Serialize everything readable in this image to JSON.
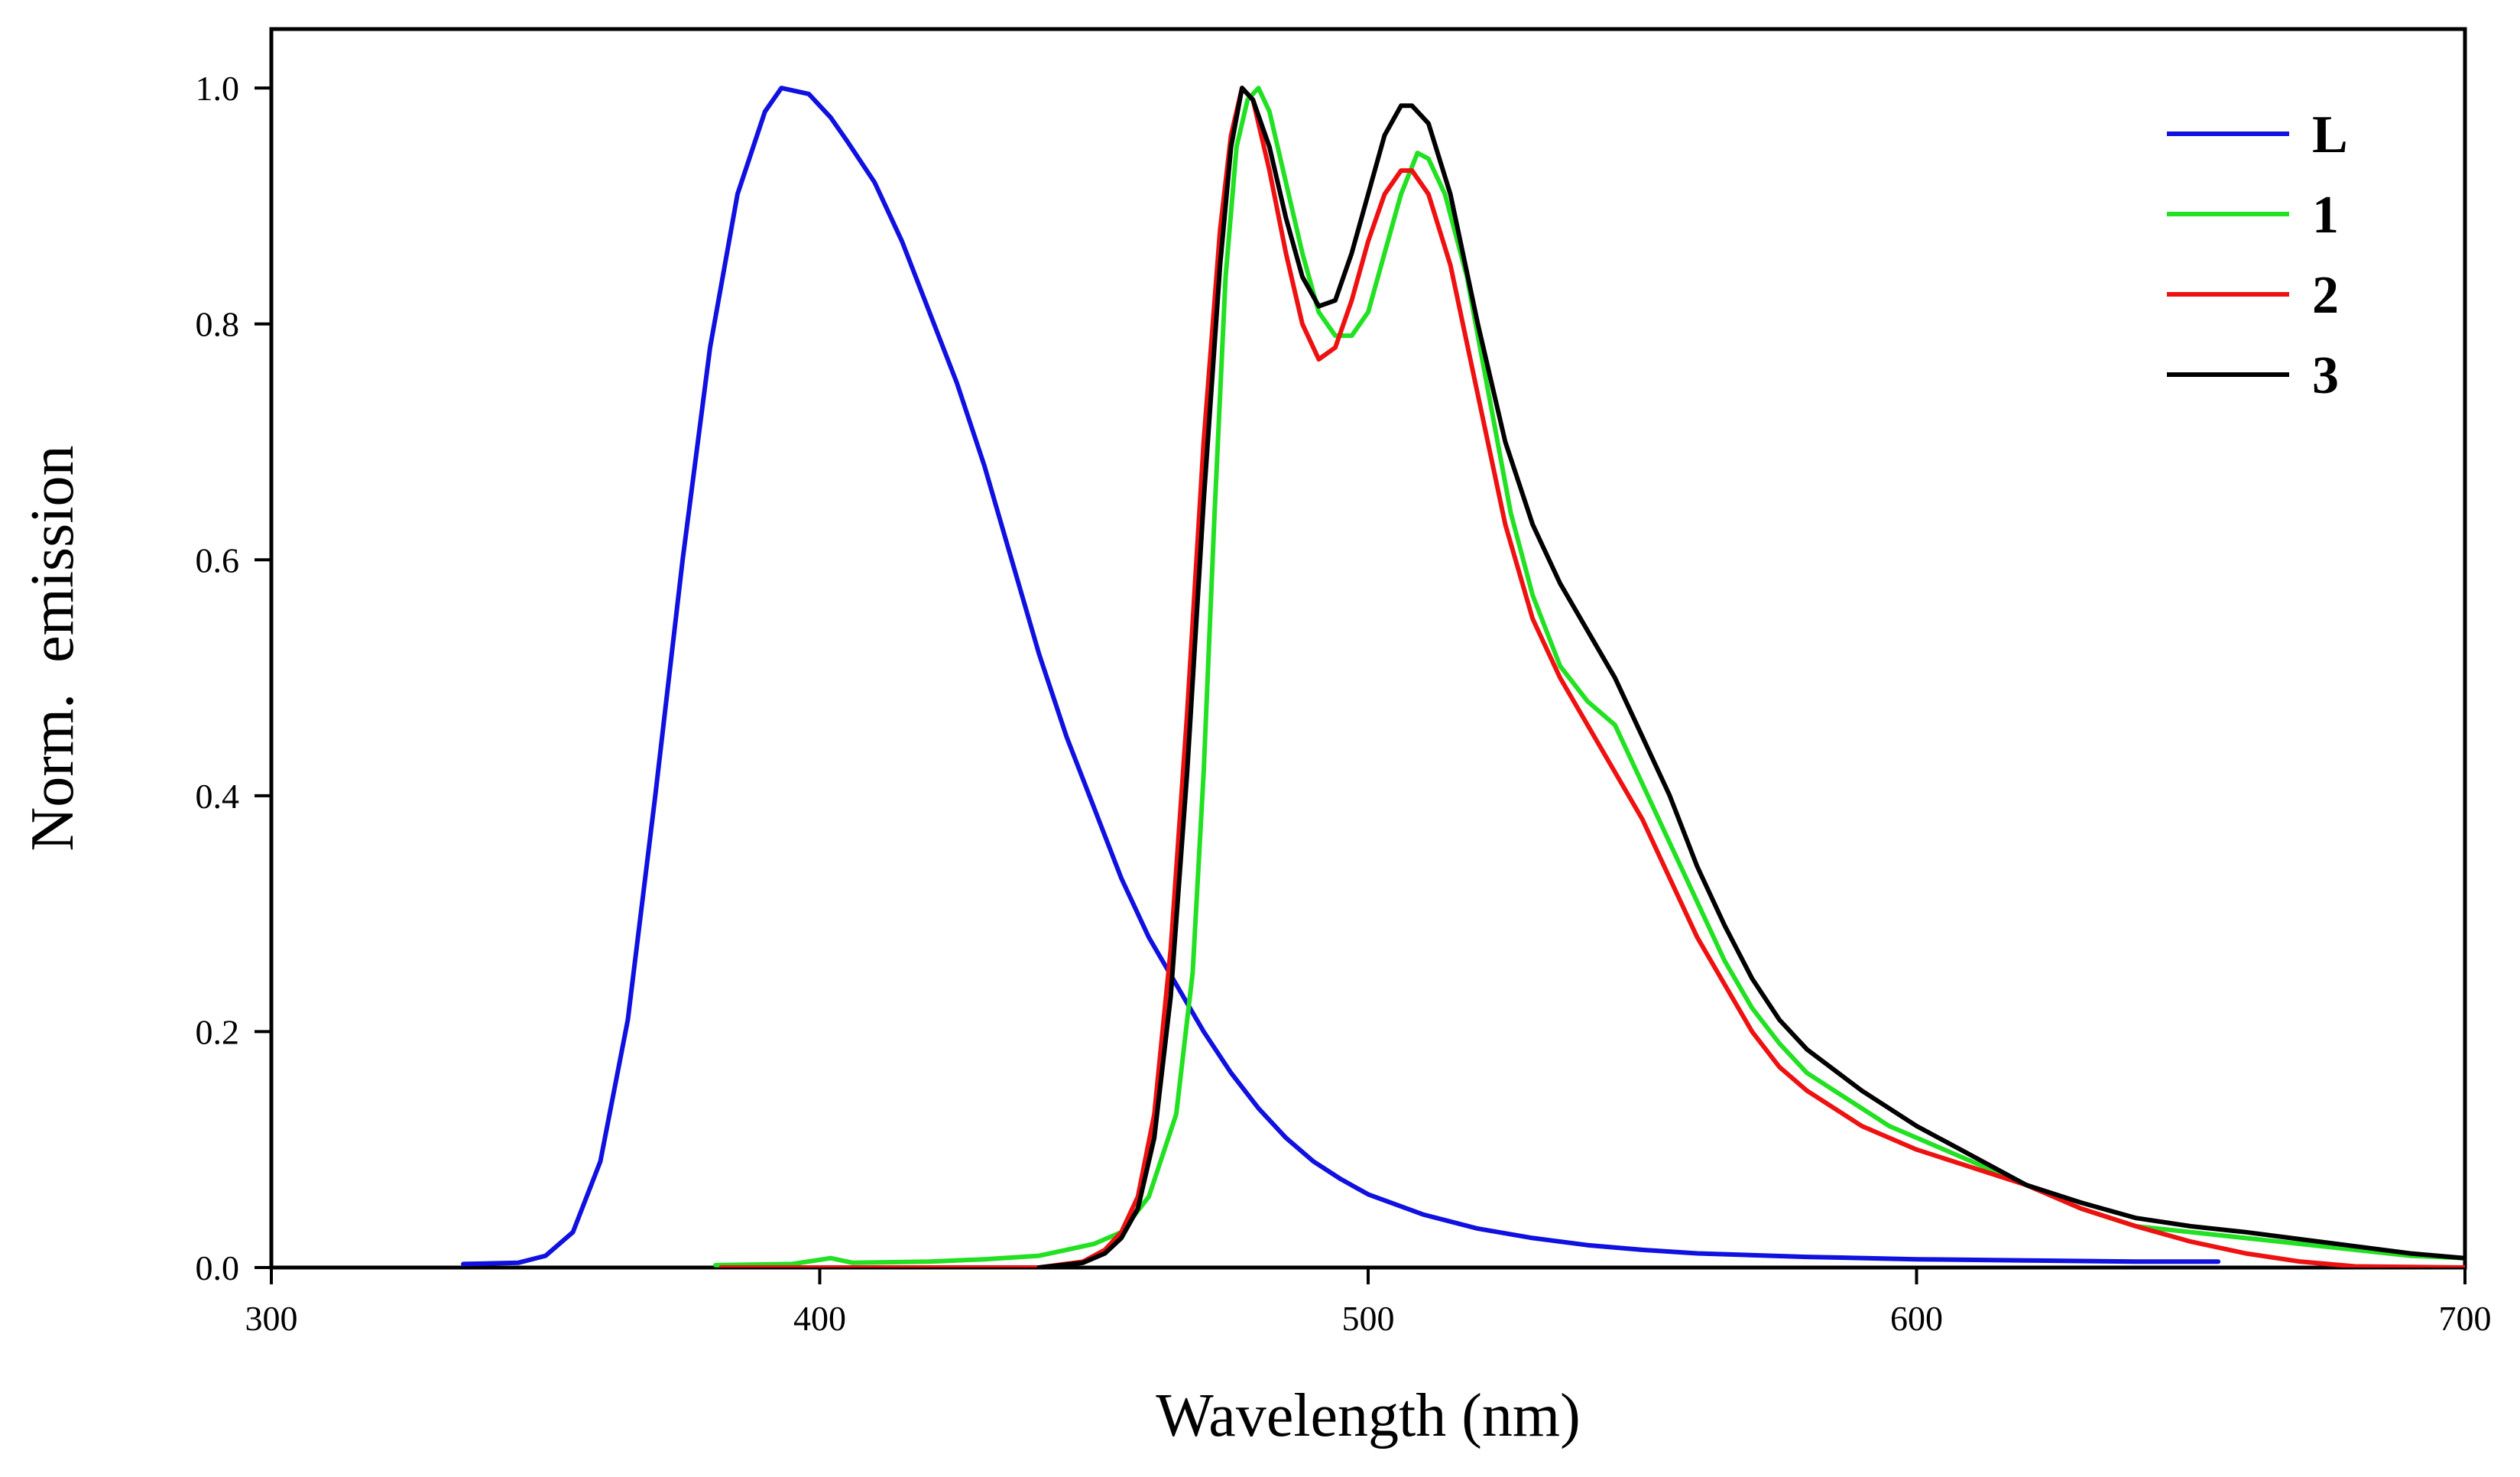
{
  "chart_data": {
    "type": "line",
    "title": "",
    "xlabel": "Wavelength (nm)",
    "ylabel": "Norm.  emission",
    "xlim": [
      300,
      700
    ],
    "ylim": [
      0,
      1.05
    ],
    "x_ticks": [
      300,
      400,
      500,
      600,
      700
    ],
    "x_tick_labels": [
      "300",
      "400",
      "500",
      "600",
      "700"
    ],
    "y_ticks": [
      0.0,
      0.2,
      0.4,
      0.6,
      0.8,
      1.0
    ],
    "y_tick_labels": [
      "0.0",
      "0.2",
      "0.4",
      "0.6",
      "0.8",
      "1.0"
    ],
    "grid": false,
    "legend_position": "top-right",
    "series": [
      {
        "name": "L",
        "color": "#1010e0",
        "points": [
          [
            335,
            0.003
          ],
          [
            345,
            0.004
          ],
          [
            350,
            0.01
          ],
          [
            355,
            0.03
          ],
          [
            360,
            0.09
          ],
          [
            365,
            0.21
          ],
          [
            370,
            0.4
          ],
          [
            375,
            0.6
          ],
          [
            380,
            0.78
          ],
          [
            385,
            0.91
          ],
          [
            390,
            0.98
          ],
          [
            393,
            1.0
          ],
          [
            398,
            0.995
          ],
          [
            402,
            0.975
          ],
          [
            405,
            0.955
          ],
          [
            410,
            0.92
          ],
          [
            415,
            0.87
          ],
          [
            420,
            0.81
          ],
          [
            425,
            0.75
          ],
          [
            430,
            0.68
          ],
          [
            435,
            0.6
          ],
          [
            440,
            0.52
          ],
          [
            445,
            0.45
          ],
          [
            450,
            0.39
          ],
          [
            455,
            0.33
          ],
          [
            460,
            0.28
          ],
          [
            465,
            0.24
          ],
          [
            470,
            0.2
          ],
          [
            475,
            0.165
          ],
          [
            480,
            0.135
          ],
          [
            485,
            0.11
          ],
          [
            490,
            0.09
          ],
          [
            495,
            0.075
          ],
          [
            500,
            0.062
          ],
          [
            510,
            0.045
          ],
          [
            520,
            0.033
          ],
          [
            530,
            0.025
          ],
          [
            540,
            0.019
          ],
          [
            550,
            0.015
          ],
          [
            560,
            0.012
          ],
          [
            580,
            0.009
          ],
          [
            600,
            0.007
          ],
          [
            620,
            0.006
          ],
          [
            640,
            0.005
          ],
          [
            655,
            0.005
          ]
        ]
      },
      {
        "name": "1",
        "color": "#22e022",
        "points": [
          [
            381,
            0.002
          ],
          [
            395,
            0.003
          ],
          [
            402,
            0.008
          ],
          [
            406,
            0.004
          ],
          [
            420,
            0.005
          ],
          [
            430,
            0.007
          ],
          [
            440,
            0.01
          ],
          [
            450,
            0.02
          ],
          [
            455,
            0.03
          ],
          [
            460,
            0.06
          ],
          [
            465,
            0.13
          ],
          [
            468,
            0.25
          ],
          [
            470,
            0.42
          ],
          [
            472,
            0.64
          ],
          [
            474,
            0.84
          ],
          [
            476,
            0.95
          ],
          [
            478,
            0.99
          ],
          [
            480,
            1.0
          ],
          [
            482,
            0.98
          ],
          [
            485,
            0.92
          ],
          [
            488,
            0.86
          ],
          [
            491,
            0.81
          ],
          [
            494,
            0.79
          ],
          [
            497,
            0.79
          ],
          [
            500,
            0.81
          ],
          [
            503,
            0.86
          ],
          [
            506,
            0.91
          ],
          [
            509,
            0.945
          ],
          [
            511,
            0.94
          ],
          [
            514,
            0.91
          ],
          [
            518,
            0.84
          ],
          [
            522,
            0.74
          ],
          [
            526,
            0.64
          ],
          [
            530,
            0.57
          ],
          [
            535,
            0.51
          ],
          [
            540,
            0.48
          ],
          [
            545,
            0.46
          ],
          [
            550,
            0.41
          ],
          [
            555,
            0.36
          ],
          [
            560,
            0.31
          ],
          [
            565,
            0.26
          ],
          [
            570,
            0.22
          ],
          [
            575,
            0.19
          ],
          [
            580,
            0.165
          ],
          [
            585,
            0.15
          ],
          [
            590,
            0.135
          ],
          [
            595,
            0.12
          ],
          [
            600,
            0.11
          ],
          [
            610,
            0.09
          ],
          [
            620,
            0.07
          ],
          [
            630,
            0.05
          ],
          [
            640,
            0.035
          ],
          [
            650,
            0.03
          ],
          [
            660,
            0.025
          ],
          [
            670,
            0.02
          ],
          [
            680,
            0.015
          ],
          [
            690,
            0.01
          ],
          [
            700,
            0.008
          ]
        ]
      },
      {
        "name": "2",
        "color": "#ee1111",
        "points": [
          [
            382,
            0.0
          ],
          [
            440,
            0.0
          ],
          [
            448,
            0.005
          ],
          [
            452,
            0.015
          ],
          [
            455,
            0.03
          ],
          [
            458,
            0.06
          ],
          [
            461,
            0.13
          ],
          [
            464,
            0.27
          ],
          [
            467,
            0.47
          ],
          [
            470,
            0.7
          ],
          [
            473,
            0.88
          ],
          [
            475,
            0.96
          ],
          [
            477,
            1.0
          ],
          [
            479,
            0.99
          ],
          [
            482,
            0.93
          ],
          [
            485,
            0.86
          ],
          [
            488,
            0.8
          ],
          [
            491,
            0.77
          ],
          [
            494,
            0.78
          ],
          [
            497,
            0.82
          ],
          [
            500,
            0.87
          ],
          [
            503,
            0.91
          ],
          [
            506,
            0.93
          ],
          [
            508,
            0.93
          ],
          [
            511,
            0.91
          ],
          [
            515,
            0.85
          ],
          [
            520,
            0.74
          ],
          [
            525,
            0.63
          ],
          [
            530,
            0.55
          ],
          [
            535,
            0.5
          ],
          [
            540,
            0.46
          ],
          [
            545,
            0.42
          ],
          [
            550,
            0.38
          ],
          [
            555,
            0.33
          ],
          [
            560,
            0.28
          ],
          [
            565,
            0.24
          ],
          [
            570,
            0.2
          ],
          [
            575,
            0.17
          ],
          [
            580,
            0.15
          ],
          [
            590,
            0.12
          ],
          [
            600,
            0.1
          ],
          [
            610,
            0.085
          ],
          [
            620,
            0.07
          ],
          [
            630,
            0.05
          ],
          [
            640,
            0.035
          ],
          [
            650,
            0.022
          ],
          [
            660,
            0.012
          ],
          [
            670,
            0.005
          ],
          [
            680,
            0.001
          ],
          [
            700,
            0.0
          ]
        ]
      },
      {
        "name": "3",
        "color": "#000000",
        "points": [
          [
            440,
            0.0
          ],
          [
            448,
            0.004
          ],
          [
            452,
            0.012
          ],
          [
            455,
            0.025
          ],
          [
            458,
            0.05
          ],
          [
            461,
            0.11
          ],
          [
            464,
            0.23
          ],
          [
            467,
            0.42
          ],
          [
            470,
            0.65
          ],
          [
            473,
            0.85
          ],
          [
            475,
            0.95
          ],
          [
            477,
            1.0
          ],
          [
            479,
            0.99
          ],
          [
            482,
            0.95
          ],
          [
            485,
            0.89
          ],
          [
            488,
            0.84
          ],
          [
            491,
            0.815
          ],
          [
            494,
            0.82
          ],
          [
            497,
            0.86
          ],
          [
            500,
            0.91
          ],
          [
            503,
            0.96
          ],
          [
            506,
            0.985
          ],
          [
            508,
            0.985
          ],
          [
            511,
            0.97
          ],
          [
            515,
            0.91
          ],
          [
            520,
            0.8
          ],
          [
            525,
            0.7
          ],
          [
            530,
            0.63
          ],
          [
            535,
            0.58
          ],
          [
            540,
            0.54
          ],
          [
            545,
            0.5
          ],
          [
            550,
            0.45
          ],
          [
            555,
            0.4
          ],
          [
            560,
            0.34
          ],
          [
            565,
            0.29
          ],
          [
            570,
            0.245
          ],
          [
            575,
            0.21
          ],
          [
            580,
            0.185
          ],
          [
            590,
            0.15
          ],
          [
            600,
            0.12
          ],
          [
            610,
            0.095
          ],
          [
            620,
            0.07
          ],
          [
            630,
            0.055
          ],
          [
            640,
            0.042
          ],
          [
            650,
            0.035
          ],
          [
            660,
            0.03
          ],
          [
            670,
            0.024
          ],
          [
            680,
            0.018
          ],
          [
            690,
            0.012
          ],
          [
            700,
            0.008
          ]
        ]
      }
    ]
  }
}
